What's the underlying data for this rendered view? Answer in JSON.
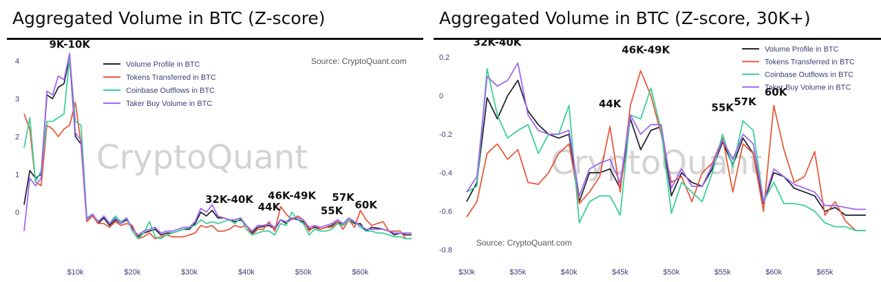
{
  "colors": {
    "Volume Profile in BTC": "#1f2533",
    "Tokens Transferred in BTC": "#e8583a",
    "Coinbase Outflows in BTC": "#3ccf99",
    "Taker Buy Volume in BTC": "#a066f2"
  },
  "chart_data": [
    {
      "type": "line",
      "title": "Aggregated Volume in BTC (Z-score)",
      "source": "Source: CryptoQuant.com",
      "watermark": "CryptoQuant",
      "xlabel": "",
      "ylabel": "",
      "xlim": [
        1000,
        69000
      ],
      "ylim": [
        -1.3,
        4.3
      ],
      "yticks": [
        0,
        1,
        2,
        3,
        4
      ],
      "xticks": [
        {
          "value": 10000,
          "label": "$10k"
        },
        {
          "value": 20000,
          "label": "$20k"
        },
        {
          "value": 30000,
          "label": "$30k"
        },
        {
          "value": 40000,
          "label": "$40k"
        },
        {
          "value": 50000,
          "label": "$50k"
        },
        {
          "value": 60000,
          "label": "$60k"
        }
      ],
      "x": [
        1000,
        2000,
        3000,
        4000,
        5000,
        6000,
        7000,
        8000,
        9000,
        10000,
        11000,
        12000,
        13000,
        14000,
        15000,
        16000,
        17000,
        18000,
        19000,
        20000,
        21000,
        22000,
        23000,
        24000,
        25000,
        26000,
        27000,
        28000,
        29000,
        30000,
        31000,
        32000,
        33000,
        34000,
        35000,
        36000,
        37000,
        38000,
        39000,
        40000,
        41000,
        42000,
        43000,
        44000,
        45000,
        46000,
        47000,
        48000,
        49000,
        50000,
        51000,
        52000,
        53000,
        54000,
        55000,
        56000,
        57000,
        58000,
        59000,
        60000,
        61000,
        62000,
        63000,
        64000,
        65000,
        66000,
        67000,
        68000,
        69000
      ],
      "series": [
        {
          "name": "Volume Profile in BTC",
          "values": [
            0.2,
            1.1,
            0.9,
            1.0,
            3.1,
            3.0,
            3.3,
            3.4,
            4.1,
            2.0,
            1.8,
            -0.2,
            -0.05,
            -0.3,
            -0.15,
            -0.35,
            -0.2,
            -0.3,
            -0.2,
            -0.4,
            -0.65,
            -0.55,
            -0.5,
            -0.45,
            -0.6,
            -0.55,
            -0.55,
            -0.5,
            -0.45,
            -0.45,
            -0.3,
            0.0,
            -0.1,
            0.05,
            -0.15,
            -0.15,
            -0.2,
            -0.25,
            -0.2,
            -0.35,
            -0.55,
            -0.4,
            -0.38,
            -0.35,
            -0.45,
            -0.2,
            -0.3,
            -0.15,
            -0.2,
            -0.25,
            -0.45,
            -0.4,
            -0.45,
            -0.4,
            -0.35,
            -0.25,
            -0.35,
            -0.2,
            -0.3,
            -0.3,
            -0.5,
            -0.4,
            -0.42,
            -0.45,
            -0.5,
            -0.6,
            -0.55,
            -0.6,
            -0.6
          ]
        },
        {
          "name": "Tokens Transferred in BTC",
          "values": [
            2.6,
            2.2,
            0.8,
            0.7,
            2.3,
            2.2,
            2.0,
            2.2,
            2.3,
            2.9,
            1.8,
            -0.25,
            -0.1,
            -0.3,
            -0.3,
            -0.4,
            -0.25,
            -0.35,
            -0.3,
            -0.35,
            -0.7,
            -0.65,
            -0.55,
            -0.7,
            -0.65,
            -0.6,
            -0.65,
            -0.65,
            -0.65,
            -0.6,
            -0.55,
            -0.35,
            -0.4,
            -0.35,
            -0.5,
            -0.5,
            -0.45,
            -0.35,
            -0.4,
            -0.35,
            -0.6,
            -0.45,
            -0.45,
            -0.25,
            -0.5,
            0.15,
            -0.05,
            -0.2,
            -0.1,
            -0.2,
            -0.5,
            -0.35,
            -0.45,
            -0.4,
            -0.4,
            -0.25,
            -0.45,
            -0.2,
            -0.4,
            0.05,
            -0.2,
            -0.35,
            -0.3,
            -0.25,
            -0.5,
            -0.5,
            -0.5,
            -0.7,
            -0.7
          ]
        },
        {
          "name": "Coinbase Outflows in BTC",
          "values": [
            1.7,
            2.5,
            0.8,
            1.1,
            2.4,
            2.4,
            2.5,
            2.6,
            4.1,
            2.4,
            2.3,
            -0.15,
            -0.05,
            -0.25,
            -0.1,
            -0.3,
            -0.1,
            -0.25,
            -0.15,
            -0.5,
            -0.7,
            -0.55,
            -0.25,
            -0.65,
            -0.7,
            -0.6,
            -0.55,
            -0.5,
            -0.45,
            -0.4,
            -0.35,
            -0.2,
            -0.3,
            -0.25,
            -0.3,
            -0.25,
            -0.2,
            -0.3,
            -0.15,
            -0.45,
            -0.6,
            -0.55,
            -0.5,
            -0.5,
            -0.6,
            -0.3,
            -0.35,
            0.0,
            -0.2,
            -0.3,
            -0.6,
            -0.45,
            -0.5,
            -0.5,
            -0.45,
            -0.3,
            -0.35,
            -0.2,
            -0.25,
            -0.4,
            -0.5,
            -0.5,
            -0.55,
            -0.55,
            -0.6,
            -0.65,
            -0.65,
            -0.7,
            -0.7
          ]
        },
        {
          "name": "Taker Buy Volume in BTC",
          "values": [
            -0.5,
            0.9,
            0.7,
            0.9,
            3.2,
            3.1,
            3.6,
            3.5,
            4.2,
            2.1,
            1.9,
            -0.2,
            -0.05,
            -0.25,
            -0.1,
            -0.3,
            -0.15,
            -0.3,
            -0.15,
            -0.45,
            -0.6,
            -0.5,
            -0.45,
            -0.4,
            -0.55,
            -0.5,
            -0.5,
            -0.45,
            -0.4,
            -0.4,
            -0.25,
            0.1,
            0.0,
            0.2,
            -0.1,
            -0.15,
            -0.2,
            -0.2,
            -0.15,
            -0.35,
            -0.5,
            -0.35,
            -0.35,
            -0.3,
            -0.4,
            -0.2,
            -0.25,
            -0.15,
            -0.15,
            -0.2,
            -0.4,
            -0.35,
            -0.4,
            -0.35,
            -0.3,
            -0.2,
            -0.3,
            -0.15,
            -0.25,
            -0.35,
            -0.45,
            -0.45,
            -0.45,
            -0.45,
            -0.5,
            -0.55,
            -0.55,
            -0.55,
            -0.55
          ]
        }
      ],
      "annotations": [
        {
          "text": "9K-10K",
          "x": 9000,
          "y": 4.35
        },
        {
          "text": "32K-40K",
          "x": 37000,
          "y": 0.25
        },
        {
          "text": "44K",
          "x": 44000,
          "y": 0.05
        },
        {
          "text": "46K-49K",
          "x": 48000,
          "y": 0.35
        },
        {
          "text": "55K",
          "x": 55000,
          "y": -0.05
        },
        {
          "text": "57K",
          "x": 57000,
          "y": 0.3
        },
        {
          "text": "60K",
          "x": 61000,
          "y": 0.1
        }
      ]
    },
    {
      "type": "line",
      "title": "Aggregated Volume in BTC (Z-score, 30K+)",
      "source": "Source: CryptoQuant.com",
      "watermark": "CryptoQuant",
      "xlabel": "",
      "ylabel": "",
      "xlim": [
        30000,
        69000
      ],
      "ylim": [
        -0.86,
        0.24
      ],
      "yticks": [
        -0.8,
        -0.6,
        -0.4,
        -0.2,
        0,
        0.2
      ],
      "xticks": [
        {
          "value": 30000,
          "label": "$30k"
        },
        {
          "value": 35000,
          "label": "$35k"
        },
        {
          "value": 40000,
          "label": "$40k"
        },
        {
          "value": 45000,
          "label": "$45k"
        },
        {
          "value": 50000,
          "label": "$50k"
        },
        {
          "value": 55000,
          "label": "$55k"
        },
        {
          "value": 60000,
          "label": "$60k"
        },
        {
          "value": 65000,
          "label": "$65k"
        }
      ],
      "x": [
        30000,
        31000,
        32000,
        33000,
        34000,
        35000,
        36000,
        37000,
        38000,
        39000,
        40000,
        41000,
        42000,
        43000,
        44000,
        45000,
        46000,
        47000,
        48000,
        49000,
        50000,
        51000,
        52000,
        53000,
        54000,
        55000,
        56000,
        57000,
        58000,
        59000,
        60000,
        61000,
        62000,
        63000,
        64000,
        65000,
        66000,
        67000,
        68000,
        69000
      ],
      "series": [
        {
          "name": "Volume Profile in BTC",
          "values": [
            -0.55,
            -0.45,
            -0.01,
            -0.12,
            0.0,
            0.08,
            -0.08,
            -0.15,
            -0.2,
            -0.22,
            -0.2,
            -0.55,
            -0.4,
            -0.4,
            -0.38,
            -0.48,
            -0.12,
            -0.28,
            -0.18,
            -0.16,
            -0.52,
            -0.4,
            -0.45,
            -0.47,
            -0.38,
            -0.24,
            -0.36,
            -0.22,
            -0.3,
            -0.56,
            -0.4,
            -0.42,
            -0.48,
            -0.5,
            -0.52,
            -0.6,
            -0.58,
            -0.62,
            -0.62,
            -0.62
          ]
        },
        {
          "name": "Tokens Transferred in BTC",
          "values": [
            -0.63,
            -0.55,
            -0.3,
            -0.25,
            -0.33,
            -0.28,
            -0.45,
            -0.46,
            -0.4,
            -0.3,
            -0.25,
            -0.56,
            -0.5,
            -0.42,
            -0.16,
            -0.5,
            -0.05,
            0.13,
            0.0,
            -0.2,
            -0.45,
            -0.42,
            -0.55,
            -0.4,
            -0.35,
            -0.22,
            -0.5,
            -0.25,
            -0.3,
            -0.6,
            -0.05,
            -0.28,
            -0.45,
            -0.42,
            -0.29,
            -0.62,
            -0.55,
            -0.65,
            -0.7,
            -0.7
          ]
        },
        {
          "name": "Coinbase Outflows in BTC",
          "values": [
            -0.5,
            -0.47,
            0.14,
            -0.1,
            -0.22,
            -0.18,
            -0.15,
            -0.3,
            -0.2,
            -0.2,
            -0.05,
            -0.66,
            -0.55,
            -0.52,
            -0.52,
            -0.62,
            -0.1,
            -0.12,
            0.04,
            -0.18,
            -0.61,
            -0.45,
            -0.5,
            -0.55,
            -0.4,
            -0.2,
            -0.37,
            -0.13,
            -0.18,
            -0.55,
            -0.45,
            -0.56,
            -0.56,
            -0.57,
            -0.6,
            -0.66,
            -0.68,
            -0.68,
            -0.7,
            -0.7
          ]
        },
        {
          "name": "Taker Buy Volume in BTC",
          "values": [
            -0.5,
            -0.42,
            0.1,
            0.05,
            0.08,
            0.17,
            -0.1,
            -0.18,
            -0.2,
            -0.2,
            -0.18,
            -0.52,
            -0.38,
            -0.35,
            -0.33,
            -0.45,
            -0.1,
            -0.2,
            -0.15,
            -0.15,
            -0.48,
            -0.38,
            -0.47,
            -0.47,
            -0.36,
            -0.23,
            -0.33,
            -0.2,
            -0.25,
            -0.55,
            -0.38,
            -0.42,
            -0.46,
            -0.48,
            -0.5,
            -0.57,
            -0.57,
            -0.58,
            -0.59,
            -0.59
          ]
        }
      ],
      "annotations": [
        {
          "text": "32K-40K",
          "x": 33000,
          "y": 0.26
        },
        {
          "text": "44K",
          "x": 44000,
          "y": -0.06
        },
        {
          "text": "46K-49K",
          "x": 47500,
          "y": 0.22
        },
        {
          "text": "55K",
          "x": 55000,
          "y": -0.08
        },
        {
          "text": "57K",
          "x": 57200,
          "y": -0.05
        },
        {
          "text": "60K",
          "x": 60200,
          "y": 0.0
        }
      ]
    }
  ]
}
